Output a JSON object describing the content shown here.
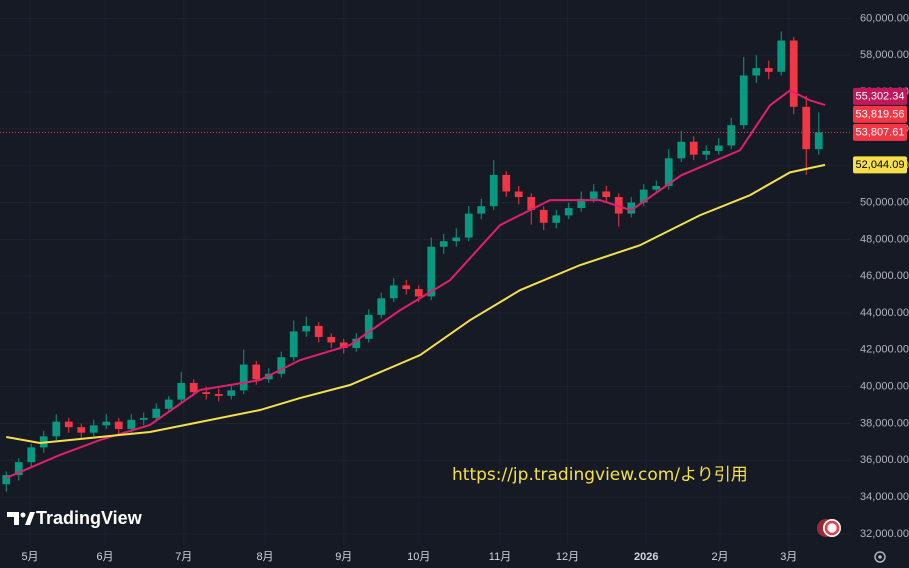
{
  "chart_data": {
    "type": "candlestick",
    "up_color": "#089981",
    "down_color": "#f23645",
    "ohlc": [
      [
        34700,
        35400,
        34300,
        35200
      ],
      [
        35200,
        36100,
        34900,
        35900
      ],
      [
        35900,
        36900,
        35600,
        36700
      ],
      [
        36700,
        37600,
        36400,
        37300
      ],
      [
        37300,
        38500,
        37100,
        38100
      ],
      [
        38100,
        38300,
        37500,
        37800
      ],
      [
        37800,
        38000,
        37200,
        37500
      ],
      [
        37500,
        38200,
        37300,
        37900
      ],
      [
        37900,
        38500,
        37700,
        38100
      ],
      [
        38100,
        38300,
        37400,
        37700
      ],
      [
        37700,
        38500,
        37500,
        38200
      ],
      [
        38200,
        38600,
        37900,
        38300
      ],
      [
        38300,
        39100,
        38100,
        38800
      ],
      [
        38800,
        39500,
        38600,
        39300
      ],
      [
        39300,
        40800,
        39100,
        40200
      ],
      [
        40200,
        40400,
        39500,
        39700
      ],
      [
        39700,
        40000,
        39300,
        39600
      ],
      [
        39600,
        39900,
        39200,
        39500
      ],
      [
        39500,
        40100,
        39300,
        39800
      ],
      [
        39800,
        42000,
        39600,
        41200
      ],
      [
        41200,
        41400,
        40100,
        40400
      ],
      [
        40400,
        41000,
        40200,
        40700
      ],
      [
        40700,
        41900,
        40500,
        41600
      ],
      [
        41600,
        43600,
        41400,
        43000
      ],
      [
        43000,
        43800,
        42700,
        43300
      ],
      [
        43300,
        43500,
        42400,
        42700
      ],
      [
        42700,
        42900,
        42100,
        42400
      ],
      [
        42400,
        42600,
        41800,
        42100
      ],
      [
        42100,
        42900,
        41900,
        42600
      ],
      [
        42600,
        44200,
        42400,
        43900
      ],
      [
        43900,
        45100,
        43700,
        44800
      ],
      [
        44800,
        45900,
        44600,
        45500
      ],
      [
        45500,
        45800,
        45000,
        45300
      ],
      [
        45300,
        45500,
        44600,
        44900
      ],
      [
        44900,
        48100,
        44700,
        47600
      ],
      [
        47600,
        48300,
        47200,
        47900
      ],
      [
        47900,
        48600,
        47600,
        48100
      ],
      [
        48100,
        49800,
        47900,
        49400
      ],
      [
        49400,
        50200,
        49100,
        49800
      ],
      [
        49800,
        52300,
        49600,
        51500
      ],
      [
        51500,
        51700,
        50300,
        50600
      ],
      [
        50600,
        50900,
        49900,
        50300
      ],
      [
        50300,
        50500,
        48800,
        49600
      ],
      [
        49600,
        49800,
        48500,
        48900
      ],
      [
        48900,
        49600,
        48600,
        49300
      ],
      [
        49300,
        50000,
        49100,
        49700
      ],
      [
        49700,
        50600,
        49500,
        50200
      ],
      [
        50200,
        51000,
        50000,
        50600
      ],
      [
        50600,
        50900,
        50000,
        50300
      ],
      [
        50300,
        50500,
        48700,
        49400
      ],
      [
        49400,
        50300,
        49200,
        50000
      ],
      [
        50000,
        51000,
        49800,
        50700
      ],
      [
        50700,
        51200,
        50500,
        50900
      ],
      [
        50900,
        52900,
        50700,
        52400
      ],
      [
        52400,
        53900,
        52200,
        53300
      ],
      [
        53300,
        53600,
        52300,
        52600
      ],
      [
        52600,
        53100,
        52300,
        52800
      ],
      [
        52800,
        53500,
        52600,
        53100
      ],
      [
        53100,
        54600,
        52900,
        54200
      ],
      [
        54200,
        57900,
        54000,
        56900
      ],
      [
        56900,
        58000,
        56500,
        57300
      ],
      [
        57300,
        57700,
        56700,
        57100
      ],
      [
        57100,
        59300,
        56900,
        58800
      ],
      [
        58800,
        59000,
        54800,
        55200
      ],
      [
        55200,
        55800,
        51500,
        52900
      ],
      [
        52900,
        54900,
        52600,
        53807.61
      ]
    ],
    "series": [
      {
        "color": "#e0206e",
        "x": [
          0,
          4.3,
          7.5,
          11.5,
          15.5,
          20.3,
          23.5,
          27.5,
          31.5,
          35.5,
          39.5,
          43.5,
          47.5,
          50,
          54,
          58.7,
          61.1,
          62.7,
          64.3,
          65.5
        ],
        "values": [
          35040,
          36290,
          37100,
          37920,
          39820,
          40360,
          41440,
          42260,
          44150,
          45780,
          48770,
          50130,
          50130,
          49580,
          51480,
          52840,
          55280,
          56090,
          55550,
          55302.34
        ]
      },
      {
        "color": "#f5e04a",
        "x": [
          0,
          2.7,
          7.5,
          11.5,
          15.5,
          20.3,
          23.5,
          27.5,
          33.1,
          37.1,
          41.1,
          45.9,
          50.7,
          55.5,
          59.5,
          62.7,
          65.5
        ],
        "values": [
          37265,
          36940,
          37265,
          37540,
          38080,
          38730,
          39380,
          40090,
          41710,
          43610,
          45240,
          46600,
          47680,
          49310,
          50400,
          51640,
          52044.09
        ]
      }
    ],
    "price_labels": [
      {
        "value": 55302.34,
        "label": "55,302.34",
        "color": "#c2185b",
        "text_color": "#ffffff"
      },
      {
        "value": 53819.56,
        "label": "53,819.56",
        "color": "#f23645",
        "text_color": "#ffffff"
      },
      {
        "value": 53807.61,
        "label": "53,807.61",
        "color": "#f23645",
        "text_color": "#ffffff"
      },
      {
        "value": 52044.09,
        "label": "52,044.09",
        "color": "#f5e04a",
        "text_color": "#000000"
      }
    ],
    "ylim": [
      31400,
      61000
    ],
    "yticks": [
      {
        "value": 32000,
        "label": "32,000.00"
      },
      {
        "value": 34000,
        "label": "34,000.00"
      },
      {
        "value": 36000,
        "label": "36,000.00"
      },
      {
        "value": 38000,
        "label": "38,000.00"
      },
      {
        "value": 40000,
        "label": "40,000.00"
      },
      {
        "value": 42000,
        "label": "42,000.00"
      },
      {
        "value": 44000,
        "label": "44,000.00"
      },
      {
        "value": 46000,
        "label": "46,000.00"
      },
      {
        "value": 48000,
        "label": "48,000.00"
      },
      {
        "value": 50000,
        "label": "50,000.00"
      },
      {
        "value": 52000,
        "label": "52,000.00"
      },
      {
        "value": 54000,
        "label": "54,000.00"
      },
      {
        "value": 56000,
        "label": "56,000.00"
      },
      {
        "value": 58000,
        "label": "58,000.00"
      },
      {
        "value": 60000,
        "label": "60,000.00"
      }
    ],
    "xlim": [
      -0.5,
      67.5
    ],
    "xticks": [
      {
        "value": 1.9,
        "label": "5月"
      },
      {
        "value": 7.9,
        "label": "6月"
      },
      {
        "value": 14.2,
        "label": "7月"
      },
      {
        "value": 20.7,
        "label": "8月"
      },
      {
        "value": 27,
        "label": "9月"
      },
      {
        "value": 33,
        "label": "10月"
      },
      {
        "value": 39.5,
        "label": "11月"
      },
      {
        "value": 44.9,
        "label": "12月"
      },
      {
        "value": 51.2,
        "label": "2026"
      },
      {
        "value": 57.1,
        "label": "2月"
      },
      {
        "value": 62.6,
        "label": "3月"
      }
    ],
    "grid": true,
    "watermark": "https://jp.tradingview.com/より引用",
    "logo": "TradingView"
  }
}
